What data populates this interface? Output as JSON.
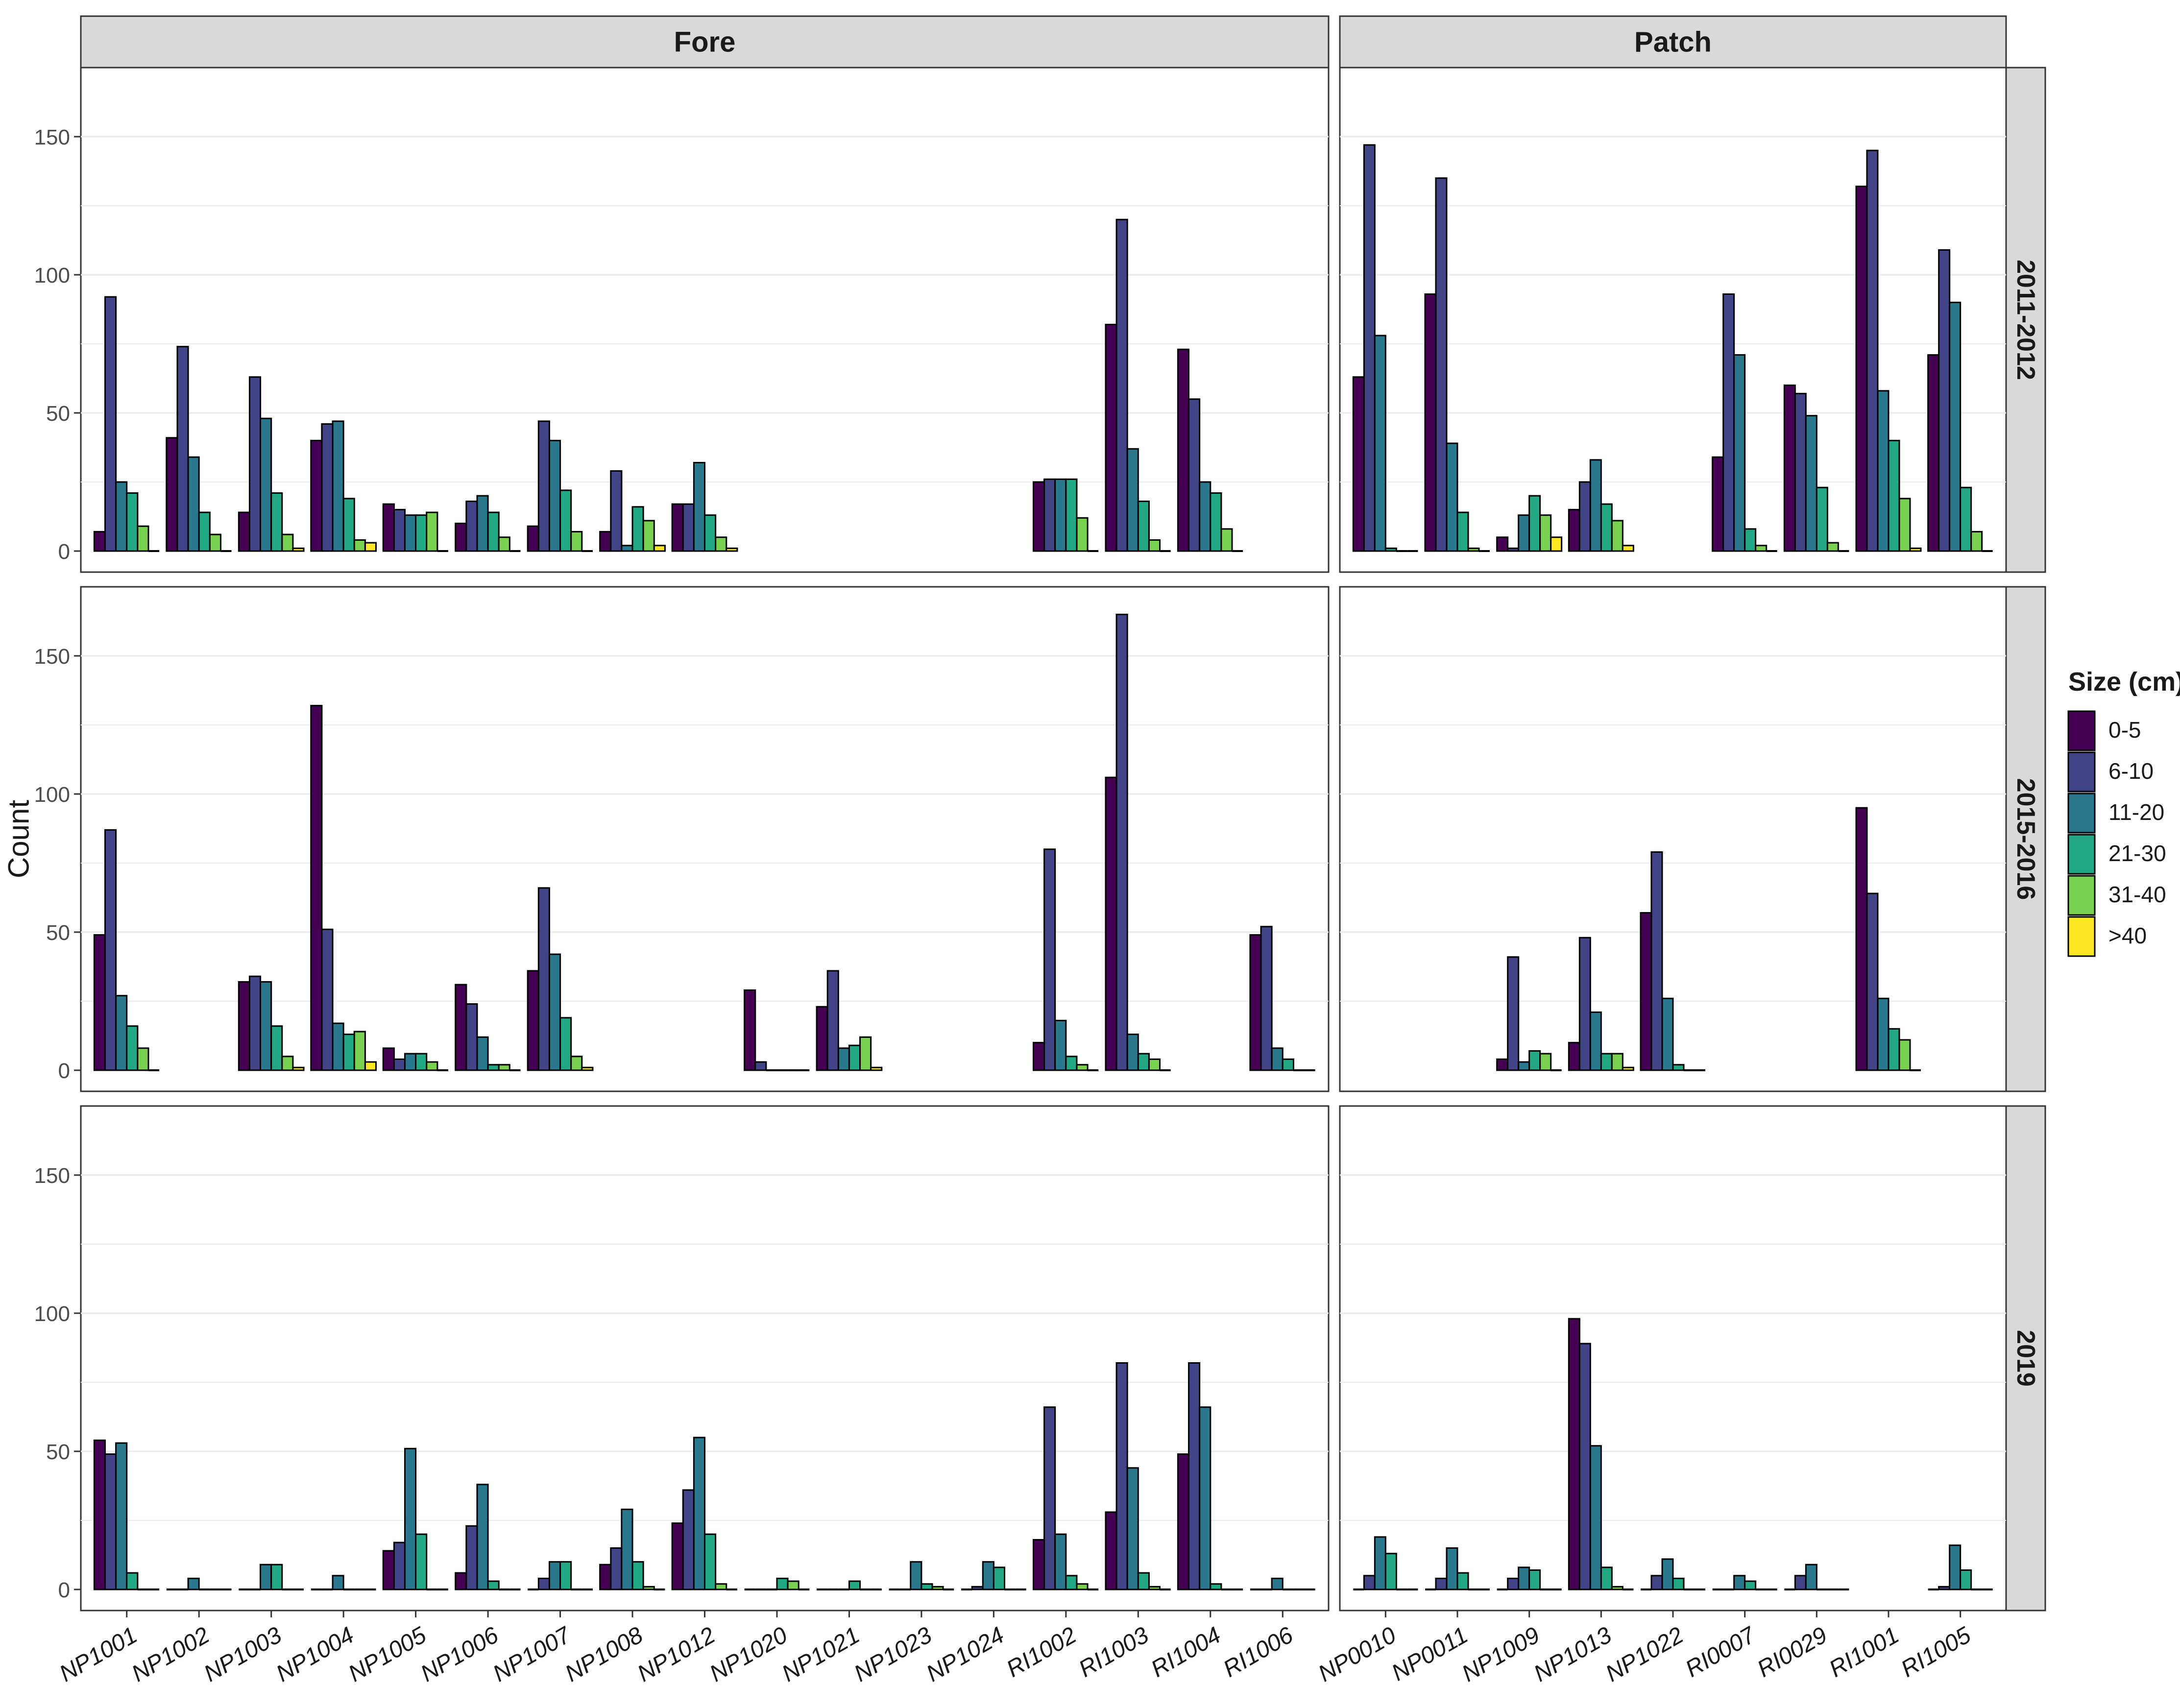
{
  "chart_data": {
    "type": "bar",
    "ylabel": "Count",
    "ylim": [
      0,
      175
    ],
    "yticks": [
      0,
      50,
      100,
      150
    ],
    "facet_columns": [
      "Fore",
      "Patch"
    ],
    "facet_rows": [
      "2011-2012",
      "2015-2016",
      "2019"
    ],
    "legend": {
      "title": "Size (cm)",
      "position": "right",
      "entries": [
        {
          "label": "0-5",
          "color": "#440154"
        },
        {
          "label": "6-10",
          "color": "#414487"
        },
        {
          "label": "11-20",
          "color": "#2A788E"
        },
        {
          "label": "21-30",
          "color": "#22A884"
        },
        {
          "label": "31-40",
          "color": "#7AD151"
        },
        {
          "label": ">40",
          "color": "#FDE725"
        }
      ]
    },
    "x_categories": {
      "Fore": [
        "NP1001",
        "NP1002",
        "NP1003",
        "NP1004",
        "NP1005",
        "NP1006",
        "NP1007",
        "NP1008",
        "NP1012",
        "NP1020",
        "NP1021",
        "NP1023",
        "NP1024",
        "RI1002",
        "RI1003",
        "RI1004",
        "RI1006"
      ],
      "Patch": [
        "NP0010",
        "NP0011",
        "NP1009",
        "NP1013",
        "NP1022",
        "RI0007",
        "RI0029",
        "RI1001",
        "RI1005"
      ]
    },
    "panels": [
      {
        "column": "Fore",
        "row": "2011-2012",
        "values": {
          "NP1001": [
            7,
            92,
            25,
            21,
            9,
            0
          ],
          "NP1002": [
            41,
            74,
            34,
            14,
            6,
            0
          ],
          "NP1003": [
            14,
            63,
            48,
            21,
            6,
            1
          ],
          "NP1004": [
            40,
            46,
            47,
            19,
            4,
            3
          ],
          "NP1005": [
            17,
            15,
            13,
            13,
            14,
            0
          ],
          "NP1006": [
            10,
            18,
            20,
            14,
            5,
            0
          ],
          "NP1007": [
            9,
            47,
            40,
            22,
            7,
            0
          ],
          "NP1008": [
            7,
            29,
            2,
            16,
            11,
            2
          ],
          "NP1012": [
            17,
            17,
            32,
            13,
            5,
            1
          ],
          "RI1002": [
            25,
            26,
            26,
            26,
            12,
            0
          ],
          "RI1003": [
            82,
            120,
            37,
            18,
            4,
            0
          ],
          "RI1004": [
            73,
            55,
            25,
            21,
            8,
            0
          ]
        }
      },
      {
        "column": "Patch",
        "row": "2011-2012",
        "values": {
          "NP0010": [
            63,
            147,
            78,
            1,
            0,
            0
          ],
          "NP0011": [
            93,
            135,
            39,
            14,
            1,
            0
          ],
          "NP1009": [
            5,
            1,
            13,
            20,
            13,
            5
          ],
          "NP1013": [
            15,
            25,
            33,
            17,
            11,
            2
          ],
          "RI0007": [
            34,
            93,
            71,
            8,
            2,
            0
          ],
          "RI0029": [
            60,
            57,
            49,
            23,
            3,
            0
          ],
          "RI1001": [
            132,
            145,
            58,
            40,
            19,
            1
          ],
          "RI1005": [
            71,
            109,
            90,
            23,
            7,
            0
          ]
        }
      },
      {
        "column": "Fore",
        "row": "2015-2016",
        "values": {
          "NP1001": [
            49,
            87,
            27,
            16,
            8,
            0
          ],
          "NP1003": [
            32,
            34,
            32,
            16,
            5,
            1
          ],
          "NP1004": [
            132,
            51,
            17,
            13,
            14,
            3
          ],
          "NP1005": [
            8,
            4,
            6,
            6,
            3,
            0
          ],
          "NP1006": [
            31,
            24,
            12,
            2,
            2,
            0
          ],
          "NP1007": [
            36,
            66,
            42,
            19,
            5,
            1
          ],
          "NP1020": [
            29,
            3,
            0,
            0,
            0,
            0
          ],
          "NP1021": [
            23,
            36,
            8,
            9,
            12,
            1
          ],
          "RI1002": [
            10,
            80,
            18,
            5,
            2,
            0
          ],
          "RI1003": [
            106,
            165,
            13,
            6,
            4,
            0
          ],
          "RI1006": [
            49,
            52,
            8,
            4,
            0,
            0
          ]
        }
      },
      {
        "column": "Patch",
        "row": "2015-2016",
        "values": {
          "NP1009": [
            4,
            41,
            3,
            7,
            6,
            0
          ],
          "NP1013": [
            10,
            48,
            21,
            6,
            6,
            1
          ],
          "NP1022": [
            57,
            79,
            26,
            2,
            0,
            0
          ],
          "RI1001": [
            95,
            64,
            26,
            15,
            11,
            0
          ]
        }
      },
      {
        "column": "Fore",
        "row": "2019",
        "values": {
          "NP1001": [
            54,
            49,
            53,
            6,
            0,
            0
          ],
          "NP1002": [
            0,
            0,
            4,
            0,
            0,
            0
          ],
          "NP1003": [
            0,
            0,
            9,
            9,
            0,
            0
          ],
          "NP1004": [
            0,
            0,
            5,
            0,
            0,
            0
          ],
          "NP1005": [
            14,
            17,
            51,
            20,
            0,
            0
          ],
          "NP1006": [
            6,
            23,
            38,
            3,
            0,
            0
          ],
          "NP1007": [
            0,
            4,
            10,
            10,
            0,
            0
          ],
          "NP1008": [
            9,
            15,
            29,
            10,
            1,
            0
          ],
          "NP1012": [
            24,
            36,
            55,
            20,
            2,
            0
          ],
          "NP1020": [
            0,
            0,
            0,
            4,
            3,
            0
          ],
          "NP1021": [
            0,
            0,
            0,
            3,
            0,
            0
          ],
          "NP1023": [
            0,
            0,
            10,
            2,
            1,
            0
          ],
          "NP1024": [
            0,
            1,
            10,
            8,
            0,
            0
          ],
          "RI1002": [
            18,
            66,
            20,
            5,
            2,
            0
          ],
          "RI1003": [
            28,
            82,
            44,
            6,
            1,
            0
          ],
          "RI1004": [
            49,
            82,
            66,
            2,
            0,
            0
          ],
          "RI1006": [
            0,
            0,
            4,
            0,
            0,
            0
          ]
        }
      },
      {
        "column": "Patch",
        "row": "2019",
        "values": {
          "NP0010": [
            0,
            5,
            19,
            13,
            0,
            0
          ],
          "NP0011": [
            0,
            4,
            15,
            6,
            0,
            0
          ],
          "NP1009": [
            0,
            4,
            8,
            7,
            0,
            0
          ],
          "NP1013": [
            98,
            89,
            52,
            8,
            1,
            0
          ],
          "NP1022": [
            0,
            5,
            11,
            4,
            0,
            0
          ],
          "RI0007": [
            0,
            0,
            5,
            3,
            0,
            0
          ],
          "RI0029": [
            0,
            5,
            9,
            0,
            0,
            0
          ],
          "RI1005": [
            0,
            1,
            16,
            7,
            0,
            0
          ]
        }
      }
    ]
  }
}
